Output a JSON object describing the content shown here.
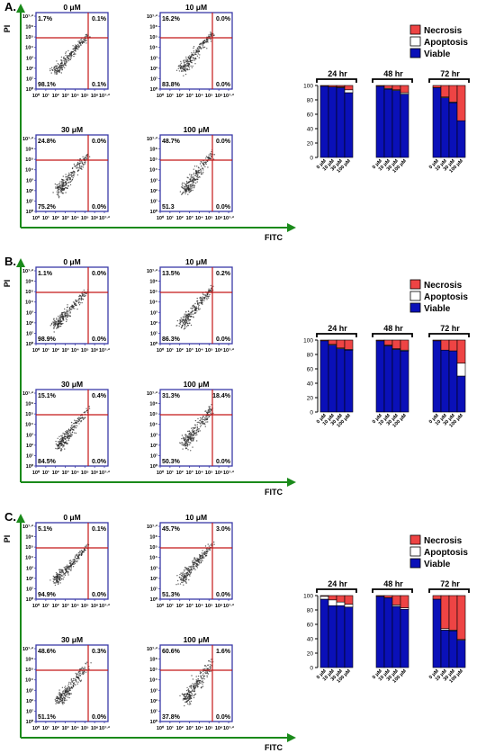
{
  "colors": {
    "necrosis": "#ee4444",
    "apoptosis": "#ffffff",
    "viable": "#0a10b8",
    "quad": "#c41818",
    "plotframe": "#3a3aa8",
    "arrow": "#1a8a1a"
  },
  "axis_label_x": "FITC",
  "axis_label_y": "PI",
  "tick_labels": [
    "10⁰",
    "10¹",
    "10²",
    "10³",
    "10⁴",
    "10⁵",
    "10⁶",
    "10⁷·²"
  ],
  "legend": [
    "Necrosis",
    "Apoptosis",
    "Viable"
  ],
  "dose_labels": [
    "0 μM",
    "10 μM",
    "30 μM",
    "100 μM"
  ],
  "panels": [
    {
      "label": "A.",
      "flow": [
        {
          "title": "0 μM",
          "q": [
            "1.7%",
            "0.1%",
            "98.1%",
            "0.1%"
          ]
        },
        {
          "title": "10 μM",
          "q": [
            "16.2%",
            "0.0%",
            "83.8%",
            "0.0%"
          ]
        },
        {
          "title": "30 μM",
          "q": [
            "24.8%",
            "0.0%",
            "75.2%",
            "0.0%"
          ]
        },
        {
          "title": "100 μM",
          "q": [
            "48.7%",
            "0.0%",
            "51.3",
            "0.0%"
          ]
        }
      ]
    },
    {
      "label": "B.",
      "flow": [
        {
          "title": "0 μM",
          "q": [
            "1.1%",
            "0.0%",
            "98.9%",
            "0.0%"
          ]
        },
        {
          "title": "10 μM",
          "q": [
            "13.5%",
            "0.2%",
            "86.3%",
            "0.0%"
          ]
        },
        {
          "title": "30 μM",
          "q": [
            "15.1%",
            "0.4%",
            "84.5%",
            "0.0%"
          ]
        },
        {
          "title": "100 μM",
          "q": [
            "31.3%",
            "18.4%",
            "50.3%",
            "0.0%"
          ]
        }
      ]
    },
    {
      "label": "C.",
      "flow": [
        {
          "title": "0 μM",
          "q": [
            "5.1%",
            "0.1%",
            "94.9%",
            "0.0%"
          ]
        },
        {
          "title": "10 μM",
          "q": [
            "45.7%",
            "3.0%",
            "51.3%",
            "0.0%"
          ]
        },
        {
          "title": "30 μM",
          "q": [
            "48.6%",
            "0.3%",
            "51.1%",
            "0.0%"
          ]
        },
        {
          "title": "100 μM",
          "q": [
            "60.6%",
            "1.6%",
            "37.8%",
            "0.0%"
          ]
        }
      ]
    }
  ],
  "chart_data": [
    {
      "type": "bar",
      "stacked": true,
      "panel": "A",
      "ylim": [
        0,
        100
      ],
      "yticks": [
        0,
        20,
        40,
        60,
        80,
        100
      ],
      "groups": [
        "24 hr",
        "48 hr",
        "72 hr"
      ],
      "categories": [
        "0 μM",
        "10 μM",
        "30 μM",
        "100 μM"
      ],
      "series": [
        {
          "name": "Viable",
          "values": [
            [
              99,
              98,
              97,
              90
            ],
            [
              99,
              95,
              93,
              88
            ],
            [
              97,
              83,
              76,
              51
            ]
          ]
        },
        {
          "name": "Apoptosis",
          "values": [
            [
              0,
              0,
              1,
              4
            ],
            [
              0,
              1,
              1,
              2
            ],
            [
              0,
              1,
              1,
              0
            ]
          ]
        },
        {
          "name": "Necrosis",
          "values": [
            [
              1,
              2,
              2,
              6
            ],
            [
              1,
              4,
              6,
              10
            ],
            [
              3,
              16,
              23,
              49
            ]
          ]
        }
      ]
    },
    {
      "type": "bar",
      "stacked": true,
      "panel": "B",
      "ylim": [
        0,
        100
      ],
      "yticks": [
        0,
        20,
        40,
        60,
        80,
        100
      ],
      "groups": [
        "24 hr",
        "48 hr",
        "72 hr"
      ],
      "categories": [
        "0 μM",
        "10 μM",
        "30 μM",
        "100 μM"
      ],
      "series": [
        {
          "name": "Viable",
          "values": [
            [
              99,
              93,
              88,
              86
            ],
            [
              99,
              92,
              87,
              85
            ],
            [
              99,
              86,
              85,
              50
            ]
          ]
        },
        {
          "name": "Apoptosis",
          "values": [
            [
              0,
              1,
              1,
              1
            ],
            [
              0,
              1,
              1,
              1
            ],
            [
              0,
              0,
              0,
              18
            ]
          ]
        },
        {
          "name": "Necrosis",
          "values": [
            [
              1,
              6,
              11,
              13
            ],
            [
              1,
              7,
              12,
              14
            ],
            [
              1,
              14,
              15,
              32
            ]
          ]
        }
      ]
    },
    {
      "type": "bar",
      "stacked": true,
      "panel": "C",
      "ylim": [
        0,
        100
      ],
      "yticks": [
        0,
        20,
        40,
        60,
        80,
        100
      ],
      "groups": [
        "24 hr",
        "48 hr",
        "72 hr"
      ],
      "categories": [
        "0 μM",
        "10 μM",
        "30 μM",
        "100 μM"
      ],
      "series": [
        {
          "name": "Viable",
          "values": [
            [
              95,
              86,
              86,
              84
            ],
            [
              99,
              97,
              85,
              81
            ],
            [
              95,
              52,
              51,
              38
            ]
          ]
        },
        {
          "name": "Apoptosis",
          "values": [
            [
              4,
              8,
              5,
              4
            ],
            [
              0,
              0,
              2,
              2
            ],
            [
              0,
              2,
              1,
              1
            ]
          ]
        },
        {
          "name": "Necrosis",
          "values": [
            [
              1,
              6,
              9,
              12
            ],
            [
              1,
              3,
              13,
              17
            ],
            [
              5,
              46,
              48,
              61
            ]
          ]
        }
      ]
    }
  ]
}
